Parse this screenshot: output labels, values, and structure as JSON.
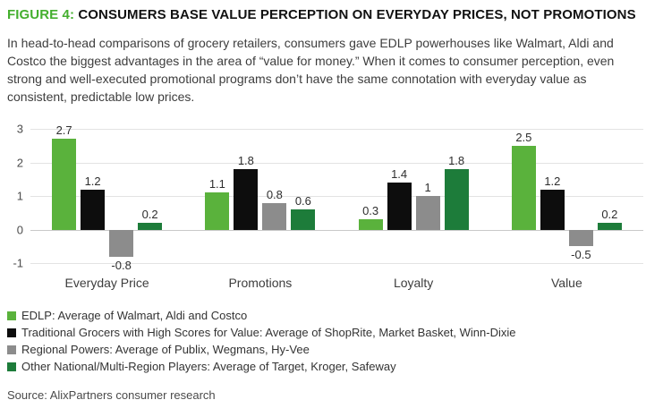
{
  "header": {
    "figure_label": "FIGURE 4:",
    "title": "CONSUMERS BASE VALUE PERCEPTION ON EVERYDAY PRICES, NOT PROMOTIONS"
  },
  "description": "In head-to-head comparisons of grocery retailers, consumers gave EDLP powerhouses like Walmart, Aldi and Costco the biggest advantages in the area of “value for money.” When it comes to consumer perception, even strong and well-executed promotional programs don’t have the same connotation with everyday value as consistent, predictable low prices.",
  "source": "Source: AlixPartners consumer research",
  "colors": {
    "figure_label_green": "#44AF2E",
    "edlp_green": "#5AB23C",
    "traditional_black": "#0D0D0D",
    "regional_gray": "#8C8C8C",
    "other_dark_green": "#1D7C3A",
    "gridline": "#E3E3E3",
    "zero_line": "#C9C9C9"
  },
  "chart_data": {
    "type": "bar",
    "title": "",
    "xlabel": "",
    "ylabel": "",
    "categories": [
      "Everyday Price",
      "Promotions",
      "Loyalty",
      "Value"
    ],
    "series": [
      {
        "name": "EDLP: Average of Walmart, Aldi and Costco",
        "color": "#5AB23C",
        "values": [
          2.7,
          1.1,
          0.3,
          2.5
        ],
        "labels": [
          "2.7",
          "1.1",
          "0.3",
          "2.5"
        ]
      },
      {
        "name": "Traditional Grocers with High Scores for Value: Average of ShopRite, Market Basket, Winn-Dixie",
        "color": "#0D0D0D",
        "values": [
          1.2,
          1.8,
          1.4,
          1.2
        ],
        "labels": [
          "1.2",
          "1.8",
          "1.4",
          "1.2"
        ]
      },
      {
        "name": "Regional Powers: Average of Publix, Wegmans, Hy-Vee",
        "color": "#8C8C8C",
        "values": [
          -0.8,
          0.8,
          1.0,
          -0.5
        ],
        "labels": [
          "-0.8",
          "0.8",
          "1",
          "-0.5"
        ]
      },
      {
        "name": "Other National/Multi-Region Players: Average of Target, Kroger, Safeway",
        "color": "#1D7C3A",
        "values": [
          0.2,
          0.6,
          1.8,
          0.2
        ],
        "labels": [
          "0.2",
          "0.6",
          "1.8",
          "0.2"
        ]
      }
    ],
    "yticks": [
      3,
      2,
      1,
      0,
      -1
    ],
    "ylim": [
      -1,
      3
    ],
    "grid": true,
    "legend_position": "bottom"
  }
}
